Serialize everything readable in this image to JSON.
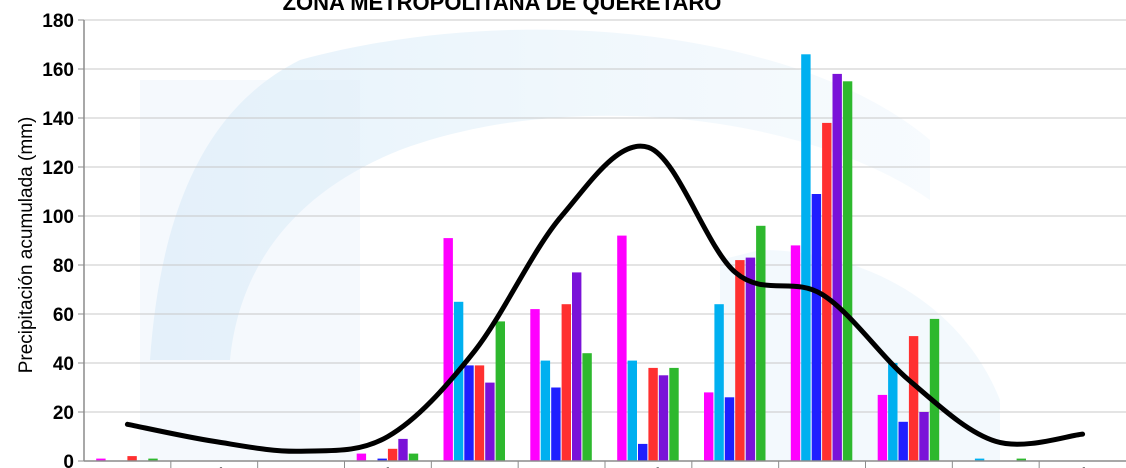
{
  "chart_data": {
    "type": "bar",
    "title": "ZONA METROPOLITANA DE QUERÉTARO",
    "ylabel": "Precipitación acumulada (mm)",
    "xlabel": "",
    "ylim": [
      0,
      180
    ],
    "yticks": [
      0,
      20,
      40,
      60,
      80,
      100,
      120,
      140,
      160,
      180
    ],
    "grid": true,
    "legend": "none",
    "categories": [
      "Ene",
      "Feb",
      "Mar",
      "Abr",
      "May",
      "Jun",
      "Jul",
      "Ago",
      "Sep",
      "Oct",
      "Nov",
      "Dic"
    ],
    "series": [
      {
        "color": "#ff00ff",
        "values": [
          1,
          0,
          0,
          3,
          91,
          62,
          92,
          28,
          88,
          27,
          0,
          0
        ]
      },
      {
        "color": "#00b0f0",
        "values": [
          0,
          0,
          0,
          0,
          65,
          41,
          41,
          64,
          166,
          40,
          1,
          0
        ]
      },
      {
        "color": "#1f1fff",
        "values": [
          0,
          0,
          0,
          1,
          39,
          30,
          7,
          26,
          109,
          16,
          0,
          0
        ]
      },
      {
        "color": "#ff3030",
        "values": [
          2,
          0,
          0,
          5,
          39,
          64,
          38,
          82,
          138,
          51,
          0,
          0
        ]
      },
      {
        "color": "#7a12d8",
        "values": [
          0,
          0,
          0,
          9,
          32,
          77,
          35,
          83,
          158,
          20,
          0,
          0
        ]
      },
      {
        "color": "#2eb82e",
        "values": [
          1,
          0,
          0,
          3,
          57,
          44,
          38,
          96,
          155,
          58,
          1,
          0
        ]
      }
    ],
    "line": {
      "color": "#000000",
      "values": [
        15,
        8,
        4,
        10,
        45,
        100,
        128,
        77,
        68,
        33,
        8,
        11
      ]
    }
  }
}
